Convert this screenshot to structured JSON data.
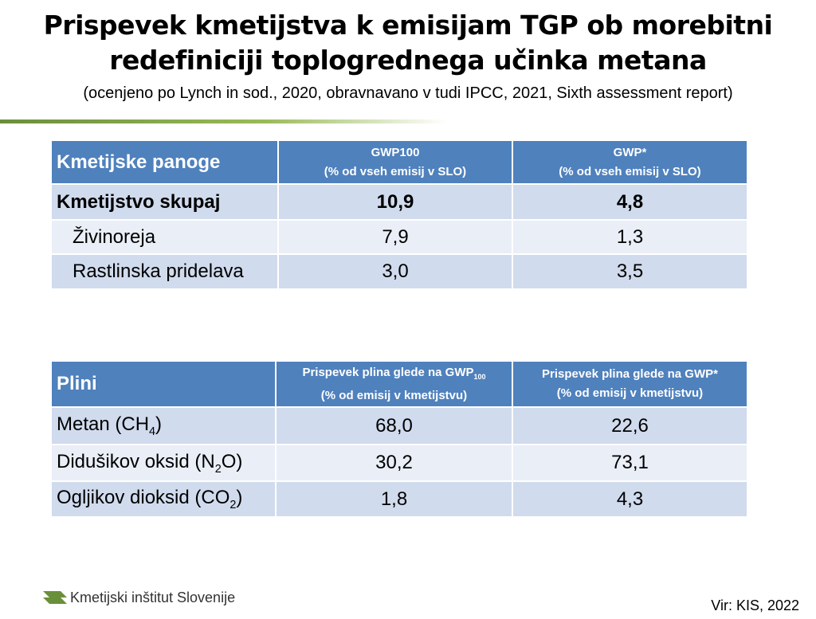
{
  "header": {
    "title_line1": "Prispevek kmetijstva k emisijam TGP ob morebitni",
    "title_line2": "redefiniciji toplogrednega učinka metana",
    "subtitle": "(ocenjeno po Lynch in sod., 2020,  obravnavano v tudi IPCC, 2021, Sixth assessment report)"
  },
  "table1": {
    "header": [
      "Kmetijske panoge",
      {
        "line1": "GWP100",
        "line2": "(% od vseh emisij v SLO)"
      },
      {
        "line1": "GWP*",
        "line2": "(% od vseh emisij v SLO)"
      }
    ],
    "rows": [
      [
        "Kmetijstvo skupaj",
        "10,9",
        "4,8"
      ],
      [
        "Živinoreja",
        "7,9",
        "1,3"
      ],
      [
        "Rastlinska pridelava",
        "3,0",
        "3,5"
      ]
    ]
  },
  "table2": {
    "header": [
      "Plini",
      {
        "text": "Prispevek plina glede na GWP",
        "sub": "100",
        "line2": "(% od emisij v kmetijstvu)"
      },
      {
        "line1": "Prispevek plina glede na GWP*",
        "line2": "(% od emisij v kmetijstvu)"
      }
    ],
    "rows": [
      [
        {
          "text": "Metan (CH",
          "sub": "4",
          "tail": ")"
        },
        "68,0",
        "22,6"
      ],
      [
        {
          "text": "Didušikov oksid (N",
          "sub": "2",
          "tail": "O)"
        },
        "30,2",
        "73,1"
      ],
      [
        {
          "text": "Ogljikov dioksid (CO",
          "sub": "2",
          "tail": ")"
        },
        "1,8",
        "4,3"
      ]
    ]
  },
  "footer": {
    "logo": "Kmetijski inštitut Slovenije",
    "source": "Vir: KIS, 2022"
  }
}
